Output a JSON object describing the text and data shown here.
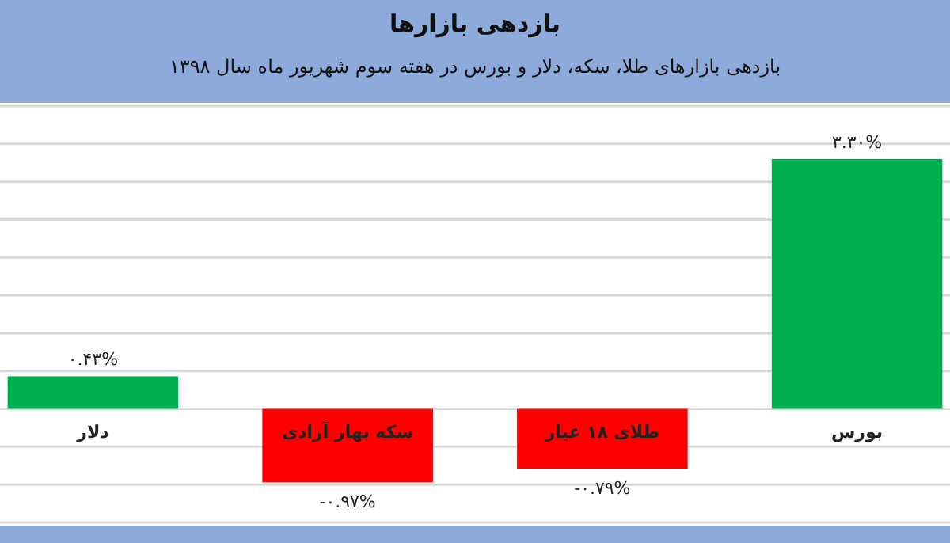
{
  "chart_data": {
    "type": "bar",
    "title": "بازدهی بازارها",
    "subtitle": "بازدهی بازارهای طلا، سکه، دلار و بورس در هفته سوم شهریور ماه سال ۱۳۹۸",
    "categories": [
      "دلار",
      "سکه بهار آزادی",
      "طلای ۱۸ عیار",
      "بورس"
    ],
    "values": [
      0.43,
      -0.97,
      -0.79,
      3.3
    ],
    "colors": [
      "#00b050",
      "#ff0000",
      "#ff0000",
      "#00b050"
    ],
    "value_labels": [
      "۰.۴۳%",
      "-۰.۹۷%",
      "-۰.۷۹%",
      "۳.۳۰%"
    ],
    "ylim": [
      -1.5,
      4
    ],
    "yticks": [
      {
        "value": -1.5,
        "label": null
      },
      {
        "value": -1,
        "label": null
      },
      {
        "value": -0.5,
        "label": null
      },
      {
        "value": 0,
        "label": null
      },
      {
        "value": 0.5,
        "label": null
      },
      {
        "value": 1,
        "label": null
      },
      {
        "value": 1.5,
        "label": null
      },
      {
        "value": 2,
        "label": null
      },
      {
        "value": 2.5,
        "label": null
      },
      {
        "value": 3,
        "label": null
      },
      {
        "value": 3.5,
        "label": null
      },
      {
        "value": 4,
        "label": null
      }
    ],
    "grid": true,
    "tick_labels": "x"
  }
}
